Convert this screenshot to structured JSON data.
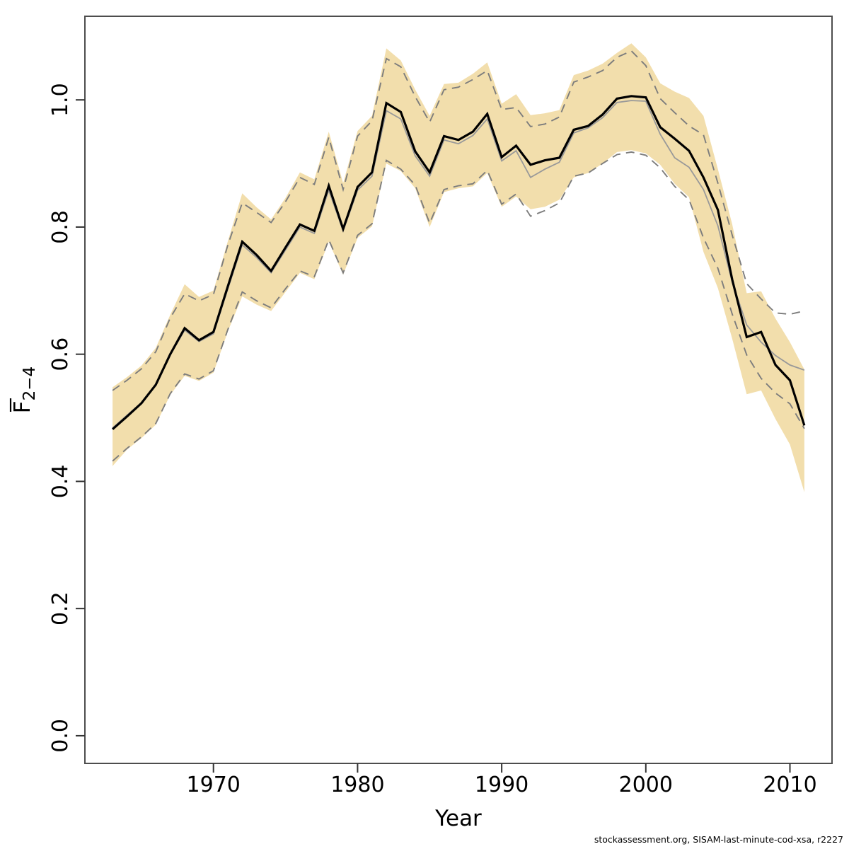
{
  "figure": {
    "caption": "stockassessment.org, SISAM-last-minute-cod-xsa, r2227"
  },
  "chart_data": {
    "type": "line",
    "title": "",
    "xlabel": "Year",
    "ylabel": {
      "base": "F",
      "overbar": true,
      "sub": "2−4"
    },
    "xlim": [
      1961.08,
      2012.92
    ],
    "ylim": [
      -0.0435,
      1.1315
    ],
    "grid": false,
    "legend_position": "none",
    "xticks": {
      "values": [
        1970,
        1980,
        1990,
        2000,
        2010
      ],
      "labels": [
        "1970",
        "1980",
        "1990",
        "2000",
        "2010"
      ]
    },
    "yticks": {
      "values": [
        0.0,
        0.2,
        0.4,
        0.6,
        0.8,
        1.0
      ],
      "labels": [
        "0.0",
        "0.2",
        "0.4",
        "0.6",
        "0.8",
        "1.0"
      ]
    },
    "years": [
      1963,
      1964,
      1965,
      1966,
      1967,
      1968,
      1969,
      1970,
      1971,
      1972,
      1973,
      1974,
      1975,
      1976,
      1977,
      1978,
      1979,
      1980,
      1981,
      1982,
      1983,
      1984,
      1985,
      1986,
      1987,
      1988,
      1989,
      1990,
      1991,
      1992,
      1993,
      1994,
      1995,
      1996,
      1997,
      1998,
      1999,
      2000,
      2001,
      2002,
      2003,
      2004,
      2005,
      2006,
      2007,
      2008,
      2009,
      2010,
      2011
    ],
    "series": [
      {
        "name": "F current run (black solid)",
        "values": [
          0.482,
          0.502,
          0.523,
          0.552,
          0.6,
          0.641,
          0.622,
          0.635,
          0.707,
          0.777,
          0.756,
          0.731,
          0.768,
          0.804,
          0.794,
          0.865,
          0.797,
          0.863,
          0.886,
          0.995,
          0.981,
          0.919,
          0.886,
          0.943,
          0.937,
          0.95,
          0.978,
          0.91,
          0.928,
          0.898,
          0.905,
          0.909,
          0.953,
          0.959,
          0.977,
          1.002,
          1.006,
          1.004,
          0.957,
          0.939,
          0.92,
          0.878,
          0.827,
          0.717,
          0.627,
          0.635,
          0.583,
          0.559,
          0.488
        ]
      },
      {
        "name": "F comparison run (gray solid)",
        "values": [
          0.484,
          0.504,
          0.524,
          0.553,
          0.599,
          0.638,
          0.62,
          0.632,
          0.703,
          0.772,
          0.752,
          0.728,
          0.764,
          0.8,
          0.79,
          0.858,
          0.794,
          0.858,
          0.88,
          0.983,
          0.97,
          0.912,
          0.88,
          0.937,
          0.931,
          0.944,
          0.97,
          0.904,
          0.92,
          0.878,
          0.891,
          0.902,
          0.948,
          0.956,
          0.972,
          0.996,
          0.999,
          0.998,
          0.946,
          0.909,
          0.894,
          0.859,
          0.802,
          0.713,
          0.646,
          0.619,
          0.598,
          0.583,
          0.575
        ]
      }
    ],
    "band": {
      "name": "confidence band current run (shaded)",
      "lower": [
        0.424,
        0.45,
        0.468,
        0.489,
        0.536,
        0.566,
        0.558,
        0.571,
        0.636,
        0.691,
        0.678,
        0.668,
        0.698,
        0.728,
        0.718,
        0.777,
        0.725,
        0.783,
        0.801,
        0.9,
        0.888,
        0.861,
        0.8,
        0.855,
        0.861,
        0.864,
        0.885,
        0.832,
        0.848,
        0.828,
        0.832,
        0.843,
        0.878,
        0.885,
        0.9,
        0.918,
        0.921,
        0.916,
        0.898,
        0.868,
        0.847,
        0.761,
        0.704,
        0.624,
        0.537,
        0.543,
        0.498,
        0.458,
        0.383
      ],
      "upper": [
        0.548,
        0.564,
        0.582,
        0.61,
        0.662,
        0.71,
        0.69,
        0.7,
        0.778,
        0.853,
        0.831,
        0.812,
        0.846,
        0.886,
        0.875,
        0.95,
        0.869,
        0.951,
        0.975,
        1.081,
        1.062,
        1.016,
        0.975,
        1.025,
        1.027,
        1.041,
        1.059,
        0.994,
        1.009,
        0.976,
        0.979,
        0.984,
        1.039,
        1.046,
        1.057,
        1.074,
        1.089,
        1.067,
        1.026,
        1.013,
        1.003,
        0.975,
        0.891,
        0.804,
        0.696,
        0.699,
        0.656,
        0.619,
        0.576
      ]
    },
    "dashed_band": {
      "name": "confidence bounds comparison run (dashed)",
      "lower": [
        0.432,
        0.452,
        0.47,
        0.491,
        0.538,
        0.569,
        0.561,
        0.574,
        0.639,
        0.698,
        0.684,
        0.673,
        0.703,
        0.731,
        0.722,
        0.78,
        0.728,
        0.787,
        0.805,
        0.905,
        0.891,
        0.866,
        0.806,
        0.859,
        0.865,
        0.868,
        0.889,
        0.836,
        0.852,
        0.817,
        0.826,
        0.838,
        0.88,
        0.885,
        0.9,
        0.914,
        0.918,
        0.913,
        0.893,
        0.864,
        0.843,
        0.783,
        0.735,
        0.663,
        0.599,
        0.562,
        0.539,
        0.522,
        0.483
      ],
      "upper": [
        0.543,
        0.559,
        0.577,
        0.604,
        0.657,
        0.695,
        0.684,
        0.694,
        0.772,
        0.838,
        0.823,
        0.807,
        0.84,
        0.878,
        0.867,
        0.941,
        0.859,
        0.943,
        0.967,
        1.065,
        1.052,
        1.005,
        0.965,
        1.016,
        1.02,
        1.032,
        1.046,
        0.985,
        0.988,
        0.958,
        0.962,
        0.973,
        1.028,
        1.036,
        1.046,
        1.067,
        1.077,
        1.054,
        1.002,
        0.98,
        0.959,
        0.945,
        0.869,
        0.787,
        0.711,
        0.687,
        0.665,
        0.663,
        0.668
      ]
    },
    "colors": {
      "band_fill": "#f2deac",
      "dashed_line": "#7d7d7d",
      "gray_line": "#999999",
      "black_line": "#000000",
      "box": "#4d4d4d",
      "tick": "#333333",
      "text": "#000000"
    }
  }
}
